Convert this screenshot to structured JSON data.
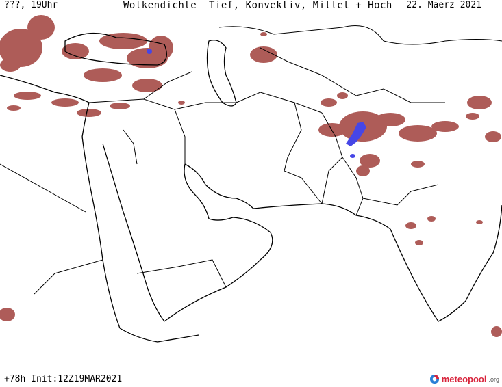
{
  "header": {
    "left": "???, 19Uhr",
    "title": "Wolkendichte  Tief, Konvektiv, Mittel + Hoch",
    "date": "22. Maerz 2021"
  },
  "footer": {
    "run": "+78h Init:12Z19MAR2021"
  },
  "logo": {
    "name": "meteopool",
    "tld": ".org"
  },
  "colors": {
    "cloud": "#a0403c",
    "cloud_light": "#c9837f",
    "cloud_dense": "#4646e6",
    "border": "#000000"
  }
}
